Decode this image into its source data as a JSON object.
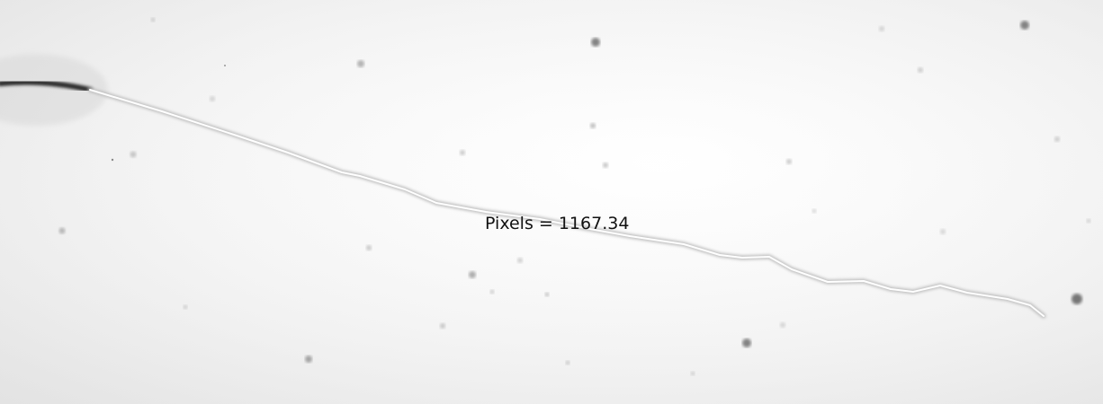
{
  "measurement": {
    "label": "Pixels = 1167.34"
  },
  "colors": {
    "background": "#f4f4f4",
    "fiber": "#2a2a2a",
    "trace": "#ffffff",
    "speck": "#7a7a7a"
  }
}
